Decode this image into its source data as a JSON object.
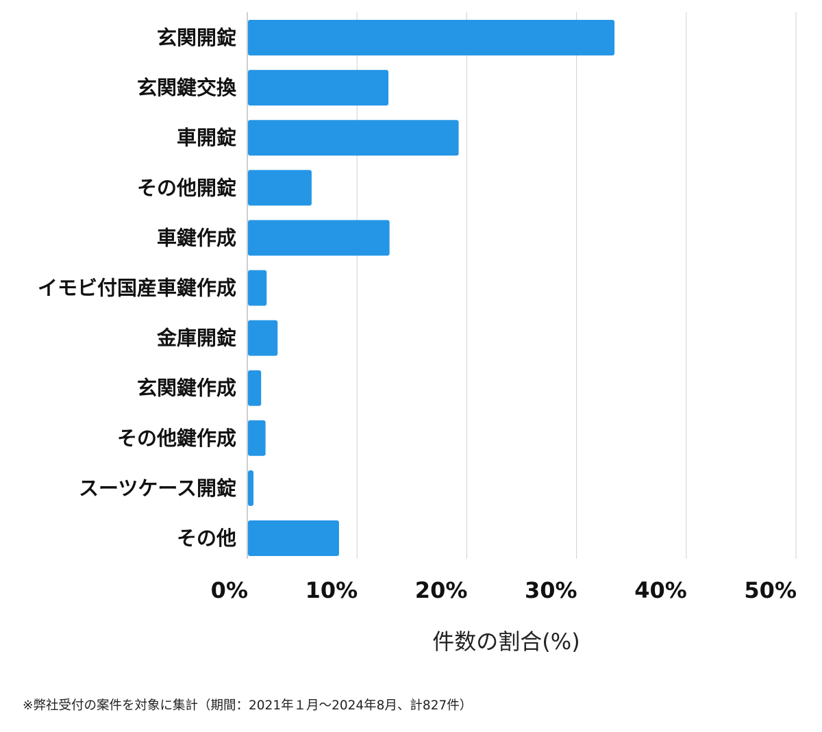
{
  "chart_data": {
    "type": "bar",
    "orientation": "horizontal",
    "categories": [
      "玄関開錠",
      "玄関鍵交換",
      "車開錠",
      "その他開錠",
      "車鍵作成",
      "イモビ付国産車鍵作成",
      "金庫開錠",
      "玄関鍵作成",
      "その他鍵作成",
      "スーツケース開錠",
      "その他"
    ],
    "values": [
      33.4,
      12.8,
      19.2,
      5.8,
      12.9,
      1.7,
      2.7,
      1.2,
      1.6,
      0.5,
      8.3
    ],
    "xlim": [
      0,
      50
    ],
    "x_ticks": [
      "0%",
      "10%",
      "20%",
      "30%",
      "40%",
      "50%"
    ],
    "x_tick_values": [
      0,
      10,
      20,
      30,
      40,
      50
    ],
    "xlabel": "件数の割合(%)",
    "ylabel": "",
    "title": "",
    "grid": "vertical",
    "bar_color": "#2596e6",
    "grid_color": "#d0d0d0",
    "footnote": "※弊社受付の案件を対象に集計（期間：2021年１月～2024年8月、計827件）"
  }
}
